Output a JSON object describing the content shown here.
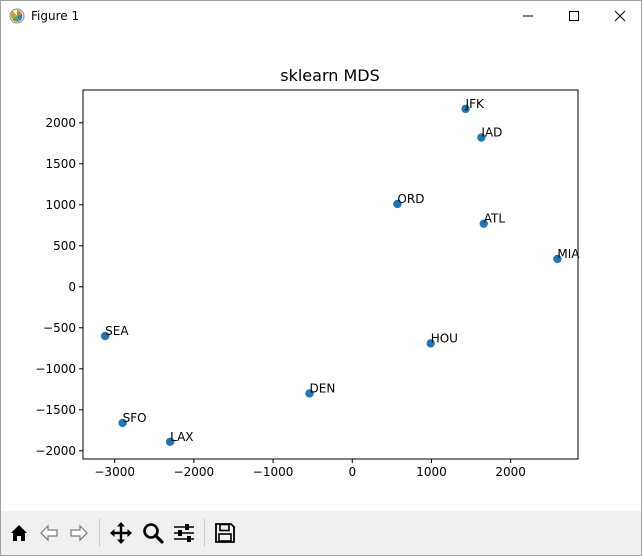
{
  "window": {
    "title": "Figure 1",
    "icons": {
      "app": "matplotlib-logo-icon",
      "minimize": "minimize-icon",
      "maximize": "maximize-icon",
      "close": "close-icon"
    }
  },
  "toolbar": {
    "buttons": [
      {
        "name": "home",
        "icon": "home-icon"
      },
      {
        "name": "back",
        "icon": "back-arrow-icon"
      },
      {
        "name": "forward",
        "icon": "forward-arrow-icon"
      },
      {
        "name": "pan",
        "icon": "pan-move-icon"
      },
      {
        "name": "zoom",
        "icon": "zoom-icon"
      },
      {
        "name": "configure-subplots",
        "icon": "sliders-icon"
      },
      {
        "name": "save",
        "icon": "save-icon"
      }
    ]
  },
  "chart_data": {
    "type": "scatter",
    "title": "sklearn MDS",
    "xlabel": "",
    "ylabel": "",
    "xlim": [
      -3400,
      2850
    ],
    "ylim": [
      -2100,
      2400
    ],
    "xticks": [
      -3000,
      -2000,
      -1000,
      0,
      1000,
      2000
    ],
    "xtick_labels": [
      "−3000",
      "−2000",
      "−1000",
      "0",
      "1000",
      "2000"
    ],
    "yticks": [
      -2000,
      -1500,
      -1000,
      -500,
      0,
      500,
      1000,
      1500,
      2000
    ],
    "ytick_labels": [
      "−2000",
      "−1500",
      "−1000",
      "−500",
      "0",
      "500",
      "1000",
      "1500",
      "2000"
    ],
    "grid": false,
    "marker_color": "#1f77b4",
    "points": [
      {
        "label": "JFK",
        "x": 1430,
        "y": 2170
      },
      {
        "label": "IAD",
        "x": 1630,
        "y": 1820
      },
      {
        "label": "ORD",
        "x": 570,
        "y": 1010
      },
      {
        "label": "ATL",
        "x": 1660,
        "y": 770
      },
      {
        "label": "MIA",
        "x": 2590,
        "y": 340
      },
      {
        "label": "SEA",
        "x": -3120,
        "y": -600
      },
      {
        "label": "HOU",
        "x": 990,
        "y": -690
      },
      {
        "label": "DEN",
        "x": -540,
        "y": -1300
      },
      {
        "label": "SFO",
        "x": -2900,
        "y": -1660
      },
      {
        "label": "LAX",
        "x": -2300,
        "y": -1890
      }
    ]
  }
}
